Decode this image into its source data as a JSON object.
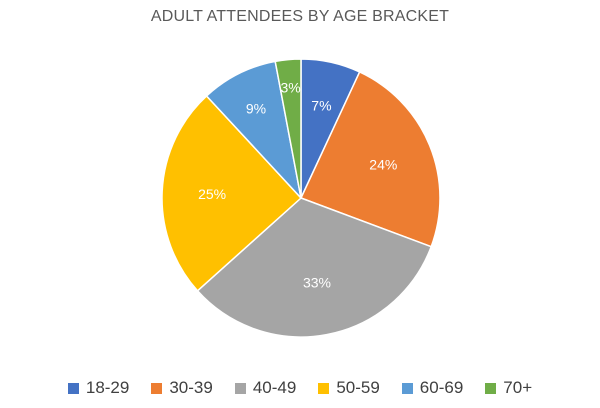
{
  "chart_data": {
    "type": "pie",
    "title": "ADULT ATTENDEES BY AGE BRACKET",
    "categories": [
      "18-29",
      "30-39",
      "40-49",
      "50-59",
      "60-69",
      "70+"
    ],
    "values": [
      7,
      24,
      33,
      25,
      9,
      3
    ],
    "labels": [
      "7%",
      "24%",
      "33%",
      "25%",
      "9%",
      "3%"
    ],
    "colors": [
      "#4472C4",
      "#ED7D31",
      "#A5A5A5",
      "#FFC000",
      "#5B9BD5",
      "#70AD47"
    ],
    "start_angle_deg": 0,
    "direction": "clockwise",
    "legend_position": "bottom"
  }
}
